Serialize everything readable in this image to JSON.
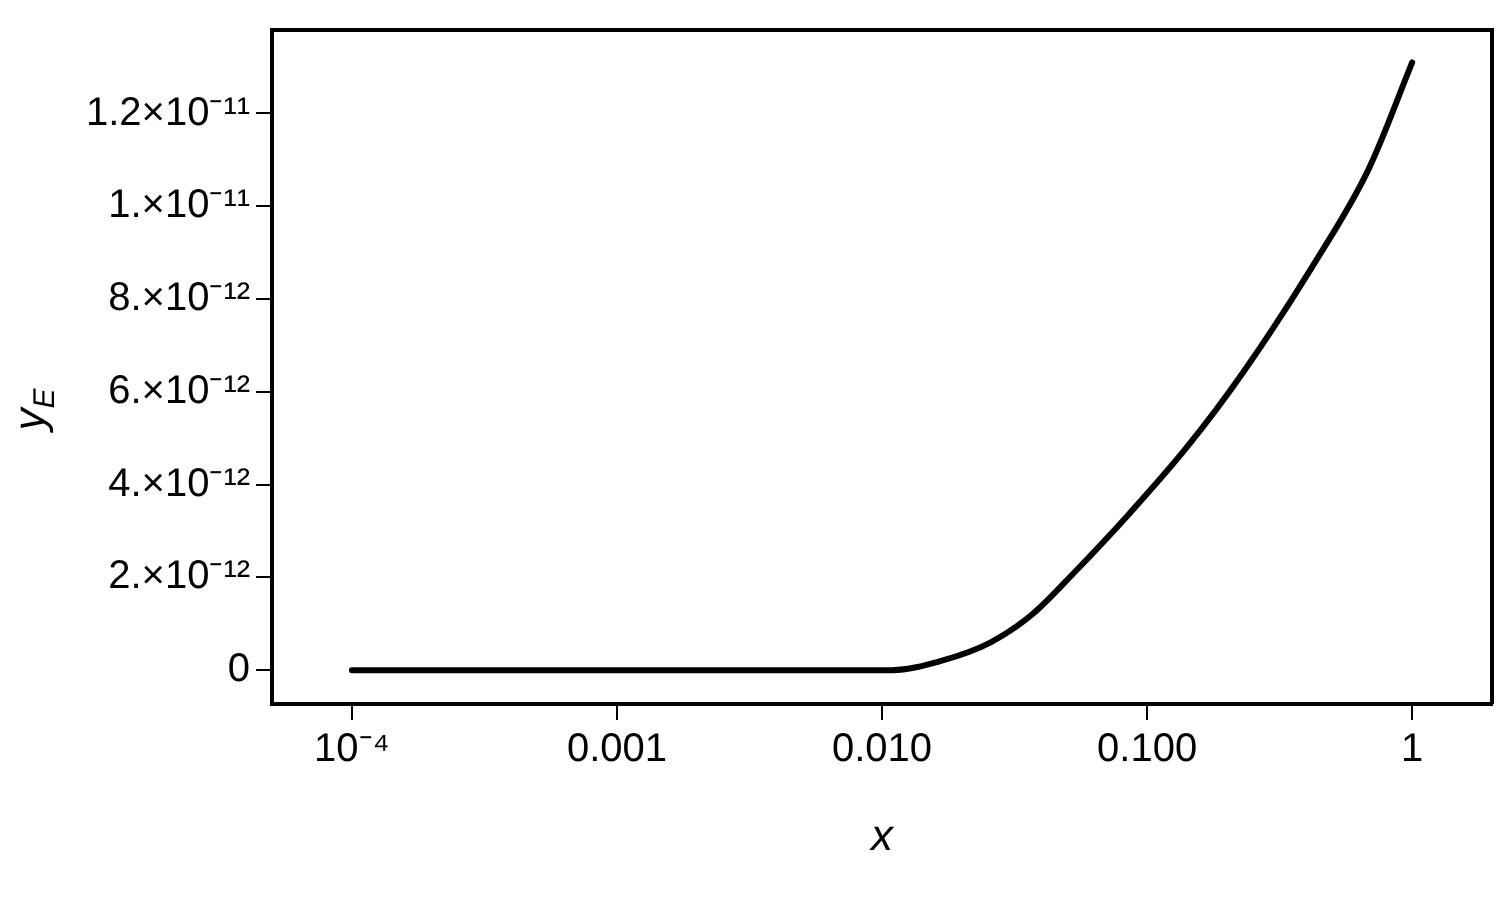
{
  "chart_data": {
    "type": "line",
    "xlabel": "x",
    "ylabel": "y$_{E}$",
    "log": "x",
    "grid": false,
    "legend": false,
    "marker": "none",
    "line_style": "solid",
    "xlim": [
      5e-05,
      2
    ],
    "xticks": [
      {
        "value": 0.0001,
        "label": "10⁻⁴"
      },
      {
        "value": 0.001,
        "label": "0.001"
      },
      {
        "value": 0.01,
        "label": "0.010"
      },
      {
        "value": 0.1,
        "label": "0.100"
      },
      1
    ],
    "ylim": [
      -7.3e-13,
      1.38e-11
    ],
    "yticks": [
      0,
      {
        "value": 2e-12,
        "label": "2.×10⁻¹²"
      },
      {
        "value": 4e-12,
        "label": "4.×10⁻¹²"
      },
      {
        "value": 6e-12,
        "label": "6.×10⁻¹²"
      },
      {
        "value": 8e-12,
        "label": "8.×10⁻¹²"
      },
      {
        "value": 1e-11,
        "label": "1.×10⁻¹¹"
      },
      {
        "value": 1.2e-11,
        "label": "1.2×10⁻¹¹"
      }
    ],
    "series": [
      {
        "color": "#000000",
        "x": [
          0.0001,
          0.001,
          0.005,
          0.0109,
          0.0167,
          0.0257,
          0.0368,
          0.053,
          0.0865,
          0.141,
          0.229,
          0.42,
          0.685,
          1
        ],
        "values": [
          0,
          0,
          0,
          0,
          2e-13,
          6e-13,
          1.2e-12,
          2.1e-12,
          3.4e-12,
          4.8e-12,
          6.4e-12,
          8.7e-12,
          1.08e-11,
          1.31e-11
        ]
      }
    ]
  }
}
